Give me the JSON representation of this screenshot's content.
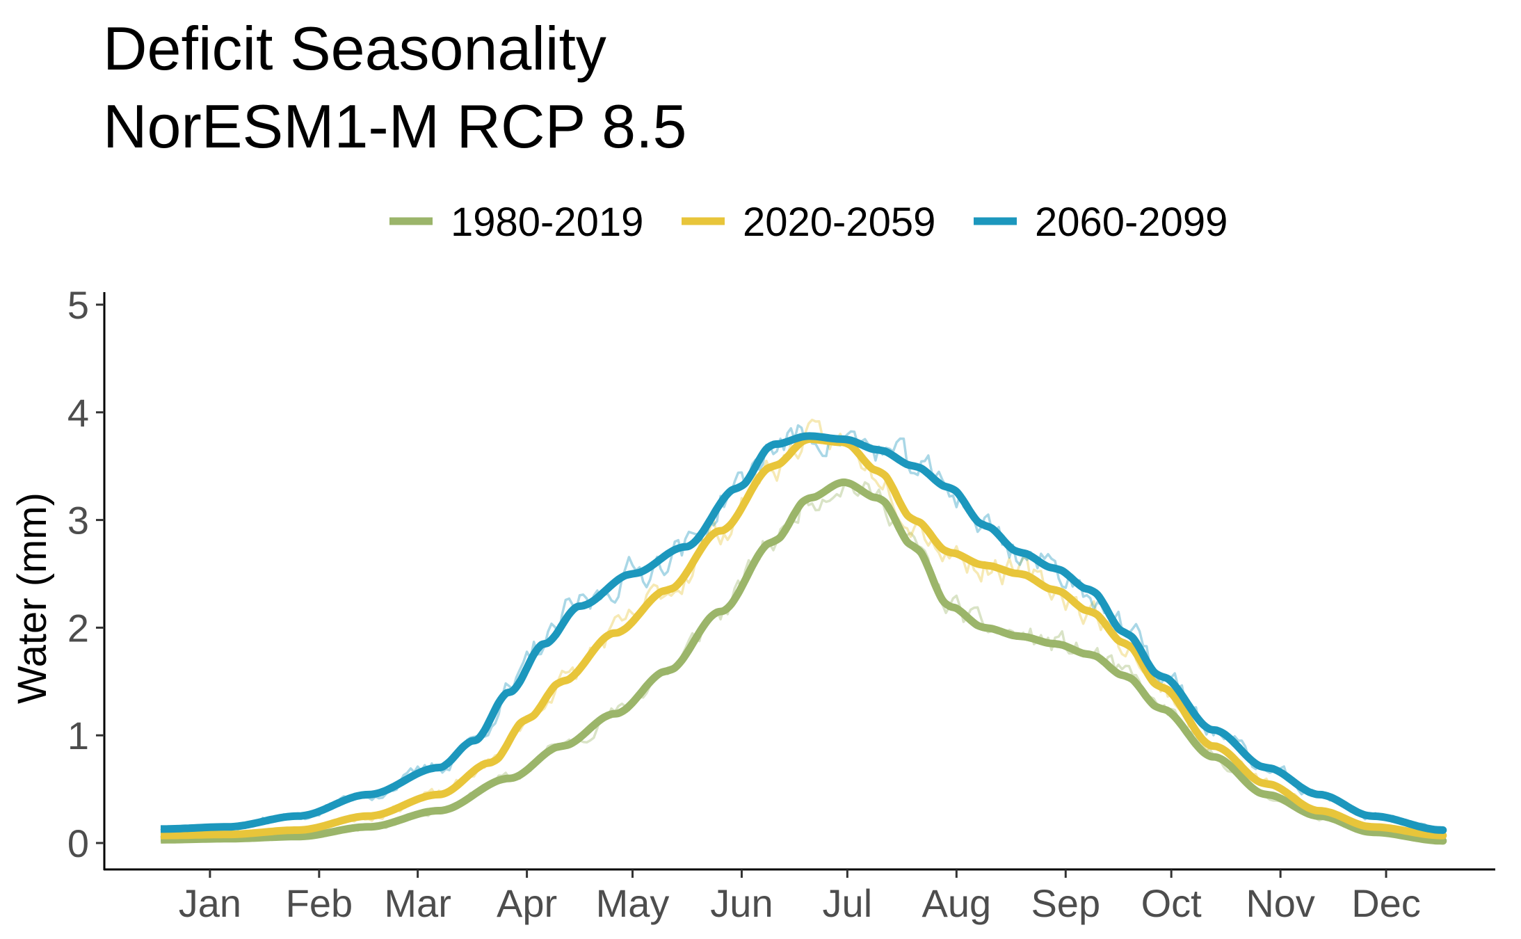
{
  "chart_data": {
    "type": "line",
    "title": "Deficit Seasonality",
    "subtitle": "NorESM1-M RCP 8.5",
    "xlabel": "",
    "ylabel": "Water (mm)",
    "ylim": [
      0,
      5
    ],
    "y_ticks": [
      "0",
      "1",
      "2",
      "3",
      "4",
      "5"
    ],
    "x_ticks": [
      "Jan",
      "Feb",
      "Mar",
      "Apr",
      "May",
      "Jun",
      "Jul",
      "Aug",
      "Sep",
      "Oct",
      "Nov",
      "Dec"
    ],
    "x_unit": "day of year",
    "xlim": [
      -15,
      380
    ],
    "grid": false,
    "legend_position": "top",
    "series": [
      {
        "name": "1980-2019",
        "color": "#9bb56a",
        "smooth": [
          [
            1,
            0.03
          ],
          [
            20,
            0.04
          ],
          [
            40,
            0.06
          ],
          [
            60,
            0.15
          ],
          [
            80,
            0.3
          ],
          [
            100,
            0.6
          ],
          [
            115,
            0.9
          ],
          [
            130,
            1.2
          ],
          [
            145,
            1.6
          ],
          [
            160,
            2.15
          ],
          [
            175,
            2.8
          ],
          [
            185,
            3.2
          ],
          [
            195,
            3.35
          ],
          [
            205,
            3.2
          ],
          [
            215,
            2.75
          ],
          [
            225,
            2.2
          ],
          [
            235,
            2.0
          ],
          [
            245,
            1.92
          ],
          [
            255,
            1.85
          ],
          [
            265,
            1.75
          ],
          [
            275,
            1.55
          ],
          [
            285,
            1.25
          ],
          [
            300,
            0.8
          ],
          [
            315,
            0.45
          ],
          [
            330,
            0.25
          ],
          [
            345,
            0.1
          ],
          [
            365,
            0.02
          ]
        ],
        "noise_seed": 11,
        "noise_amp": 0.14
      },
      {
        "name": "2020-2059",
        "color": "#e8c53a",
        "smooth": [
          [
            1,
            0.07
          ],
          [
            20,
            0.08
          ],
          [
            40,
            0.12
          ],
          [
            60,
            0.25
          ],
          [
            80,
            0.45
          ],
          [
            95,
            0.75
          ],
          [
            105,
            1.15
          ],
          [
            115,
            1.5
          ],
          [
            130,
            1.95
          ],
          [
            145,
            2.35
          ],
          [
            160,
            2.9
          ],
          [
            175,
            3.5
          ],
          [
            185,
            3.75
          ],
          [
            195,
            3.72
          ],
          [
            205,
            3.45
          ],
          [
            215,
            3.0
          ],
          [
            225,
            2.7
          ],
          [
            235,
            2.58
          ],
          [
            245,
            2.5
          ],
          [
            255,
            2.35
          ],
          [
            265,
            2.15
          ],
          [
            275,
            1.85
          ],
          [
            285,
            1.45
          ],
          [
            300,
            0.9
          ],
          [
            315,
            0.55
          ],
          [
            330,
            0.3
          ],
          [
            345,
            0.15
          ],
          [
            365,
            0.07
          ]
        ],
        "noise_seed": 23,
        "noise_amp": 0.16
      },
      {
        "name": "2060-2099",
        "color": "#1c97bd",
        "smooth": [
          [
            1,
            0.13
          ],
          [
            20,
            0.15
          ],
          [
            40,
            0.25
          ],
          [
            60,
            0.45
          ],
          [
            80,
            0.7
          ],
          [
            90,
            0.95
          ],
          [
            100,
            1.4
          ],
          [
            110,
            1.85
          ],
          [
            120,
            2.2
          ],
          [
            135,
            2.5
          ],
          [
            150,
            2.75
          ],
          [
            165,
            3.3
          ],
          [
            175,
            3.7
          ],
          [
            185,
            3.78
          ],
          [
            195,
            3.75
          ],
          [
            205,
            3.65
          ],
          [
            215,
            3.5
          ],
          [
            225,
            3.3
          ],
          [
            235,
            2.95
          ],
          [
            245,
            2.7
          ],
          [
            255,
            2.55
          ],
          [
            265,
            2.35
          ],
          [
            275,
            1.95
          ],
          [
            285,
            1.55
          ],
          [
            300,
            1.05
          ],
          [
            315,
            0.7
          ],
          [
            330,
            0.45
          ],
          [
            345,
            0.25
          ],
          [
            365,
            0.12
          ]
        ],
        "noise_seed": 37,
        "noise_amp": 0.18
      }
    ]
  }
}
